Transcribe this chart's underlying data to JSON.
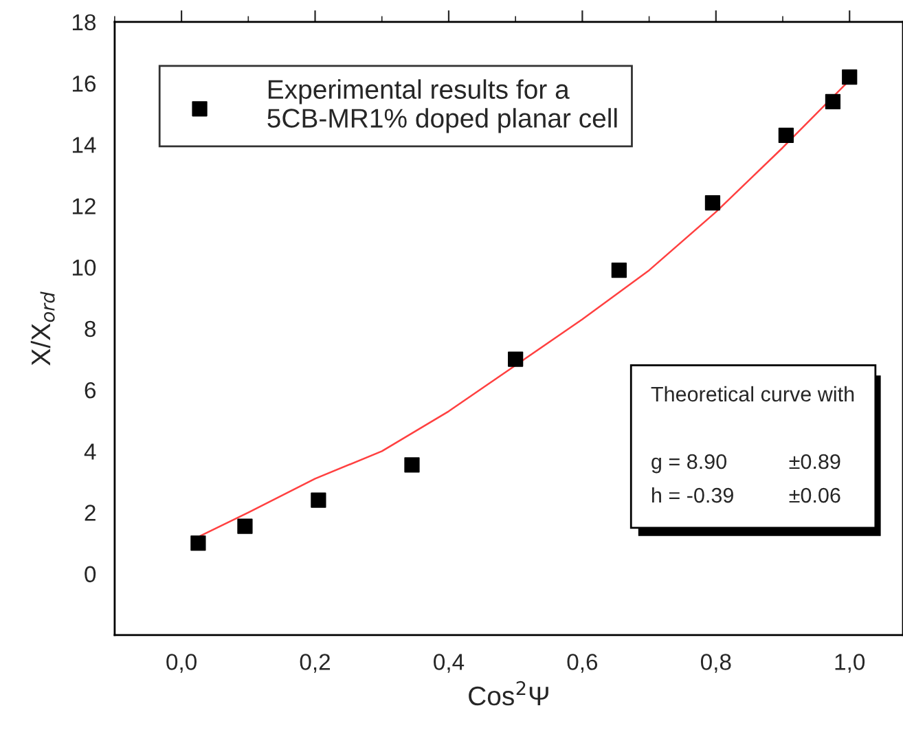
{
  "chart_data": {
    "type": "scatter",
    "xlabel": "Cos$^{2}$Ψ",
    "ylabel": "X/X$_{ord}$",
    "xlim": [
      -0.1,
      1.08
    ],
    "ylim": [
      -2,
      18
    ],
    "xticks": [
      {
        "value": 0.0,
        "label": "0,0"
      },
      {
        "value": 0.2,
        "label": "0,2"
      },
      {
        "value": 0.4,
        "label": "0,4"
      },
      {
        "value": 0.6,
        "label": "0,6"
      },
      {
        "value": 0.8,
        "label": "0,8"
      },
      {
        "value": 1.0,
        "label": "1,0"
      }
    ],
    "yticks": [
      0,
      2,
      4,
      6,
      8,
      10,
      12,
      14,
      16,
      18
    ],
    "grid": false,
    "legend": "top left",
    "marker": "square",
    "series": [
      {
        "name": "Experimental results for a\n5CB-MR1% doped planar cell",
        "color": "#000000",
        "x": [
          0.025,
          0.095,
          0.205,
          0.345,
          0.5,
          0.655,
          0.795,
          0.905,
          0.975,
          1.0
        ],
        "values": [
          1.0,
          1.55,
          2.4,
          3.55,
          7.0,
          9.9,
          12.1,
          14.3,
          15.4,
          16.2
        ]
      },
      {
        "type": "line",
        "color": "#ff4040",
        "line_style": "solid",
        "marker": "none",
        "x": [
          0.025,
          0.1,
          0.2,
          0.3,
          0.4,
          0.5,
          0.6,
          0.7,
          0.8,
          0.9,
          1.0
        ],
        "values": [
          1.2,
          2.0,
          3.1,
          4.0,
          5.3,
          6.8,
          8.3,
          9.9,
          11.8,
          13.9,
          16.1
        ]
      }
    ],
    "annotations": [
      "Theoretical curve with",
      "g = 8.90",
      "±0.89",
      "h = -0.39",
      "±0.06"
    ]
  }
}
